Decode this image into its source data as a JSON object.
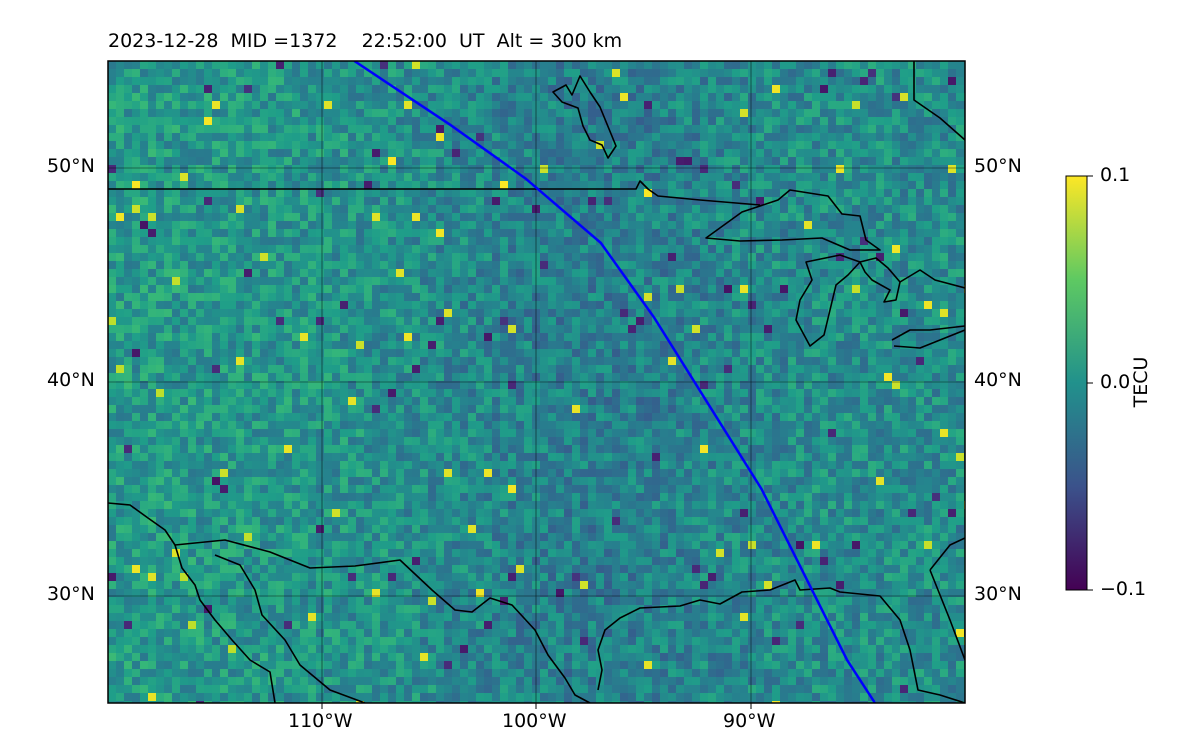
{
  "header": {
    "title": "2023-12-28  MID =1372    22:52:00  UT  Alt = 300 km"
  },
  "map": {
    "lat_ticks": [
      "50°N",
      "40°N",
      "30°N"
    ],
    "lon_ticks": [
      "110°W",
      "100°W",
      "90°W"
    ],
    "lat_values": [
      50,
      40,
      30
    ],
    "lon_values": [
      -110,
      -100,
      -90
    ],
    "extent": {
      "lon_min": -120,
      "lon_max": -80,
      "lat_min": 25,
      "lat_max": 55
    },
    "track_color": "#0000ff",
    "coast_color": "#000000",
    "grid_color": "#000000"
  },
  "colorbar": {
    "label": "TECU",
    "ticks": [
      "0.1",
      "0.0",
      "−0.1"
    ],
    "tick_values": [
      0.1,
      0.0,
      -0.1
    ],
    "colormap": "viridis",
    "min": -0.1,
    "max": 0.1
  },
  "chart_data": {
    "type": "heatmap",
    "title": "2023-12-28  MID =1372    22:52:00  UT  Alt = 300 km",
    "value_label": "TECU",
    "vmin": -0.1,
    "vmax": 0.1,
    "satellite_track": [
      {
        "lon": -108.5,
        "lat": 55
      },
      {
        "lon": -104,
        "lat": 52
      },
      {
        "lon": -100.5,
        "lat": 49.5
      },
      {
        "lon": -97,
        "lat": 46.5
      },
      {
        "lon": -94.5,
        "lat": 43
      },
      {
        "lon": -92,
        "lat": 39
      },
      {
        "lon": -89.5,
        "lat": 35
      },
      {
        "lon": -87.5,
        "lat": 31
      },
      {
        "lon": -85.5,
        "lat": 27
      },
      {
        "lon": -84.2,
        "lat": 25
      }
    ]
  }
}
